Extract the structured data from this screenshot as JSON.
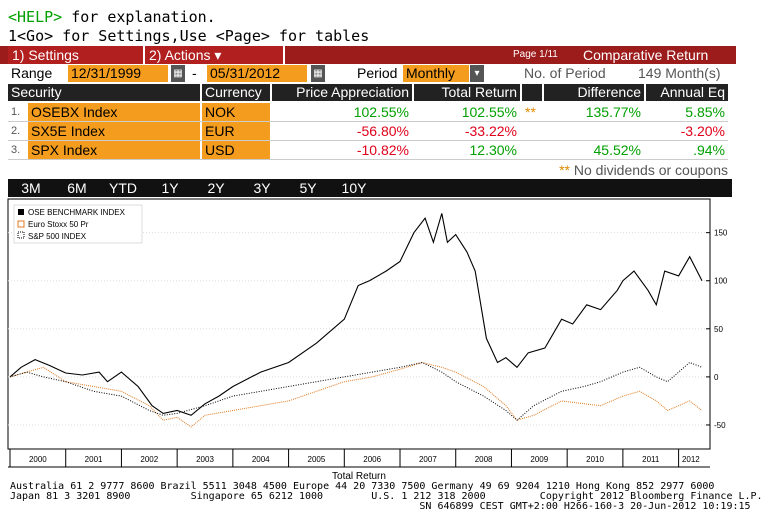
{
  "terminal": {
    "line1_key": "<HELP>",
    "line1_rest": " for explanation.",
    "line2": "1<Go> for Settings,Use <Page> for tables"
  },
  "topbar": {
    "settings": "1) Settings",
    "actions": "2) Actions",
    "actions_caret": "▾",
    "page": "Page 1/11",
    "title": "Comparative Return"
  },
  "range": {
    "label": "Range",
    "start": "12/31/1999",
    "dash": "-",
    "end": "05/31/2012",
    "period_label": "Period",
    "period_value": "Monthly",
    "caret": "▾",
    "nop_label": "No. of Period",
    "nop_value": "149 Month(s)"
  },
  "table": {
    "headers": [
      "Security",
      "Currency",
      "Price Appreciation",
      "Total Return",
      "Difference",
      "Annual Eq"
    ],
    "rows": [
      {
        "idx": "1.",
        "security": "OSEBX Index",
        "currency": "NOK",
        "price": "102.55%",
        "total": "102.55%",
        "flag": "**",
        "diff": "135.77%",
        "annual": "5.85%"
      },
      {
        "idx": "2.",
        "security": "SX5E Index",
        "currency": "EUR",
        "price": "-56.80%",
        "total": "-33.22%",
        "flag": "",
        "diff": "",
        "annual": "-3.20%"
      },
      {
        "idx": "3.",
        "security": "SPX Index",
        "currency": "USD",
        "price": "-10.82%",
        "total": "12.30%",
        "flag": "",
        "diff": "45.52%",
        "annual": ".94%"
      }
    ],
    "note_stars": "**",
    "note_text": " No dividends or coupons"
  },
  "tabs": [
    "3M",
    "6M",
    "YTD",
    "1Y",
    "2Y",
    "3Y",
    "5Y",
    "10Y"
  ],
  "colors": {
    "orange": "#f39c1e",
    "red_bar": "#9c1b1b",
    "green": "#00a000",
    "neg": "#e0001a"
  },
  "chart_data": {
    "type": "line",
    "xlabel": "Total Return",
    "x_ticks": [
      "2000",
      "2001",
      "2002",
      "2003",
      "2004",
      "2005",
      "2006",
      "2007",
      "2008",
      "2009",
      "2010",
      "2011",
      "2012"
    ],
    "y_ticks": [
      150,
      100,
      50,
      0,
      -50
    ],
    "ylim": [
      -75,
      185
    ],
    "xlim": [
      2000.0,
      2012.42
    ],
    "legend": [
      "OSE BENCHMARK INDEX",
      "Euro Stoxx 50 Pr",
      "S&P 500 INDEX"
    ],
    "legend_placement": "top-left",
    "series": [
      {
        "name": "OSE BENCHMARK INDEX",
        "style": "solid",
        "x": [
          2000.0,
          2000.2,
          2000.45,
          2000.7,
          2001.0,
          2001.3,
          2001.6,
          2001.75,
          2002.0,
          2002.3,
          2002.55,
          2002.75,
          2003.0,
          2003.25,
          2003.5,
          2003.75,
          2004.0,
          2004.5,
          2005.0,
          2005.5,
          2006.0,
          2006.25,
          2006.45,
          2006.75,
          2007.0,
          2007.25,
          2007.45,
          2007.6,
          2007.75,
          2007.85,
          2008.0,
          2008.2,
          2008.35,
          2008.55,
          2008.75,
          2008.9,
          2009.1,
          2009.3,
          2009.6,
          2009.9,
          2010.1,
          2010.35,
          2010.6,
          2010.9,
          2011.0,
          2011.2,
          2011.45,
          2011.6,
          2011.75,
          2012.0,
          2012.2,
          2012.42
        ],
        "y": [
          0,
          10,
          18,
          12,
          4,
          2,
          5,
          -5,
          5,
          -10,
          -30,
          -38,
          -35,
          -40,
          -28,
          -20,
          -10,
          5,
          15,
          35,
          60,
          95,
          100,
          110,
          120,
          150,
          165,
          140,
          170,
          140,
          148,
          130,
          110,
          40,
          15,
          20,
          10,
          25,
          30,
          60,
          55,
          75,
          70,
          90,
          100,
          110,
          90,
          75,
          110,
          105,
          125,
          100
        ]
      },
      {
        "name": "Euro Stoxx 50 Pr",
        "style": "dotted_orange",
        "x": [
          2000.0,
          2000.3,
          2000.6,
          2001.0,
          2001.5,
          2002.0,
          2002.5,
          2002.75,
          2003.0,
          2003.25,
          2003.5,
          2004.0,
          2004.5,
          2005.0,
          2005.5,
          2006.0,
          2006.5,
          2007.0,
          2007.4,
          2007.75,
          2008.0,
          2008.5,
          2008.9,
          2009.1,
          2009.4,
          2009.9,
          2010.3,
          2010.6,
          2011.0,
          2011.3,
          2011.6,
          2011.8,
          2012.0,
          2012.2,
          2012.42
        ],
        "y": [
          0,
          5,
          10,
          -5,
          -10,
          -15,
          -30,
          -45,
          -42,
          -52,
          -40,
          -35,
          -30,
          -25,
          -15,
          -5,
          0,
          8,
          15,
          10,
          5,
          -10,
          -30,
          -45,
          -40,
          -25,
          -28,
          -30,
          -20,
          -15,
          -25,
          -35,
          -30,
          -25,
          -35
        ]
      },
      {
        "name": "S&P 500 INDEX",
        "style": "dotted_black",
        "x": [
          2000.0,
          2000.3,
          2000.6,
          2001.0,
          2001.5,
          2002.0,
          2002.5,
          2002.75,
          2003.0,
          2003.5,
          2004.0,
          2004.5,
          2005.0,
          2005.5,
          2006.0,
          2006.5,
          2007.0,
          2007.4,
          2007.75,
          2008.0,
          2008.5,
          2008.9,
          2009.1,
          2009.4,
          2009.9,
          2010.3,
          2010.6,
          2011.0,
          2011.3,
          2011.6,
          2011.8,
          2012.0,
          2012.2,
          2012.42
        ],
        "y": [
          0,
          5,
          0,
          -5,
          -15,
          -20,
          -35,
          -40,
          -38,
          -30,
          -20,
          -15,
          -10,
          -5,
          0,
          5,
          10,
          15,
          5,
          -5,
          -20,
          -35,
          -45,
          -30,
          -15,
          -10,
          -5,
          5,
          10,
          0,
          -5,
          5,
          15,
          10
        ]
      }
    ]
  },
  "footer": {
    "line1": "Australia 61 2 9777 8600 Brazil 5511 3048 4500 Europe 44 20 7330 7500 Germany 49 69 9204 1210 Hong Kong 852 2977 6000",
    "line2": "Japan 81 3 3201 8900          Singapore 65 6212 1000        U.S. 1 212 318 2000         Copyright 2012 Bloomberg Finance L.P.",
    "line3": "                                                                    SN 646899 CEST GMT+2:00 H266-160-3 20-Jun-2012 10:19:15"
  }
}
